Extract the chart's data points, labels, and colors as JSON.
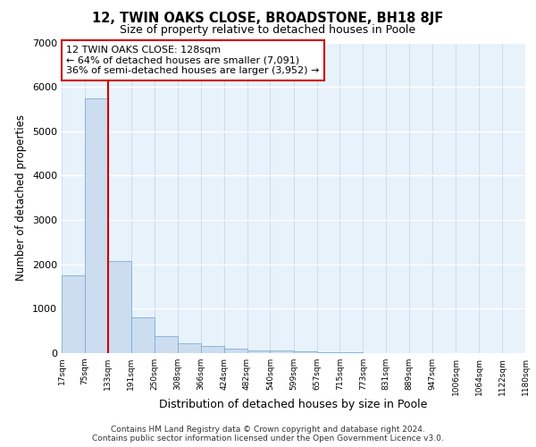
{
  "title": "12, TWIN OAKS CLOSE, BROADSTONE, BH18 8JF",
  "subtitle": "Size of property relative to detached houses in Poole",
  "xlabel": "Distribution of detached houses by size in Poole",
  "ylabel": "Number of detached properties",
  "footer_line1": "Contains HM Land Registry data © Crown copyright and database right 2024.",
  "footer_line2": "Contains public sector information licensed under the Open Government Licence v3.0.",
  "bar_fill_color": "#ccddf0",
  "bar_edge_color": "#7bafd4",
  "bg_color": "#e8f2fb",
  "annotation_box_edge_color": "#cc0000",
  "vline_color": "#cc0000",
  "vline_x": 133,
  "annotation_text": "12 TWIN OAKS CLOSE: 128sqm\n← 64% of detached houses are smaller (7,091)\n36% of semi-detached houses are larger (3,952) →",
  "bin_edges": [
    17,
    75,
    133,
    191,
    250,
    308,
    366,
    424,
    482,
    540,
    599,
    657,
    715,
    773,
    831,
    889,
    947,
    1006,
    1064,
    1122,
    1180
  ],
  "bar_heights": [
    1750,
    5750,
    2075,
    800,
    375,
    230,
    155,
    100,
    70,
    60,
    40,
    25,
    15,
    10,
    8,
    5,
    3,
    2,
    2,
    1
  ],
  "ylim": [
    0,
    7000
  ],
  "yticks": [
    0,
    1000,
    2000,
    3000,
    4000,
    5000,
    6000,
    7000
  ]
}
